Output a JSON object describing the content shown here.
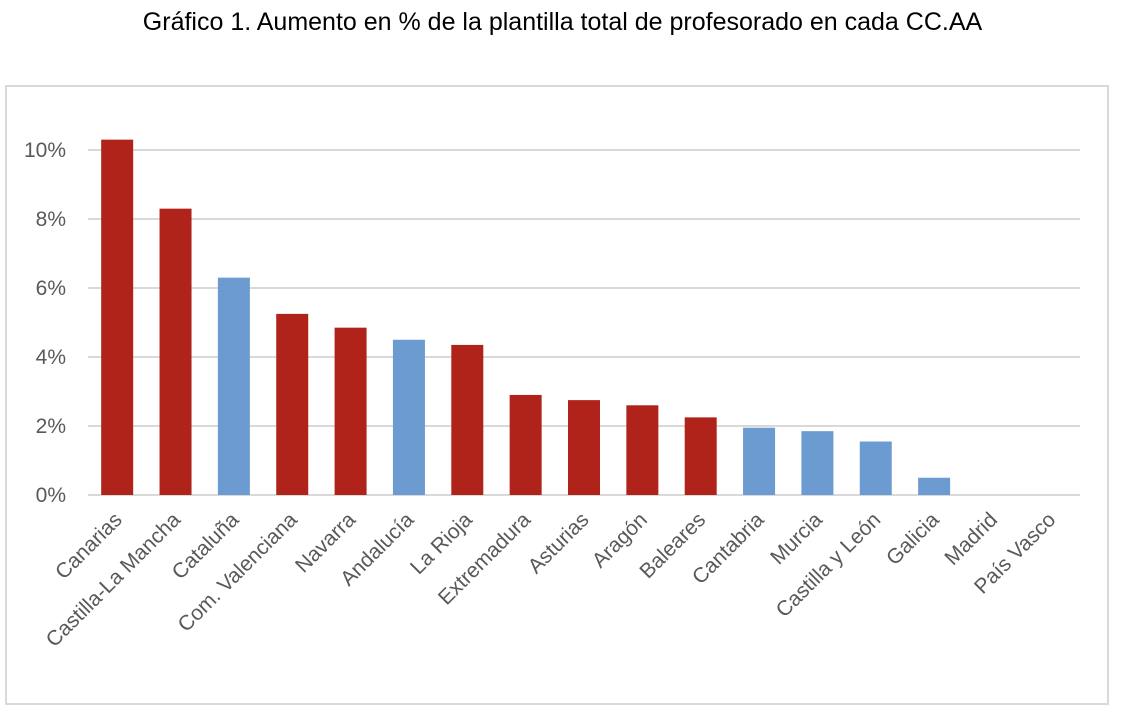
{
  "title": "Gráfico 1. Aumento en % de la plantilla total de profesorado en cada CC.AA",
  "colors": {
    "red": "#b0231b",
    "blue": "#6b9bd1",
    "grid": "#d9d9d9",
    "axis_text": "#595959"
  },
  "chart_data": {
    "type": "bar",
    "title": "Gráfico 1. Aumento en % de la plantilla total de profesorado en cada CC.AA",
    "xlabel": "",
    "ylabel": "",
    "ylim": [
      0,
      10
    ],
    "yticks": [
      "0%",
      "2%",
      "4%",
      "6%",
      "8%",
      "10%"
    ],
    "grid": true,
    "legend": "none",
    "categories": [
      "Canarias",
      "Castilla-La Mancha",
      "Cataluña",
      "Com. Valenciana",
      "Navarra",
      "Andalucía",
      "La Rioja",
      "Extremadura",
      "Asturias",
      "Aragón",
      "Baleares",
      "Cantabria",
      "Murcia",
      "Castilla y León",
      "Galicia",
      "Madrid",
      "País Vasco"
    ],
    "values": [
      10.3,
      8.3,
      6.3,
      5.25,
      4.85,
      4.5,
      4.35,
      2.9,
      2.75,
      2.6,
      2.25,
      1.95,
      1.85,
      1.55,
      0.5,
      0,
      0
    ],
    "bar_colors": [
      "red",
      "red",
      "blue",
      "red",
      "red",
      "blue",
      "red",
      "red",
      "red",
      "red",
      "red",
      "blue",
      "blue",
      "blue",
      "blue",
      "blue",
      "blue"
    ]
  }
}
